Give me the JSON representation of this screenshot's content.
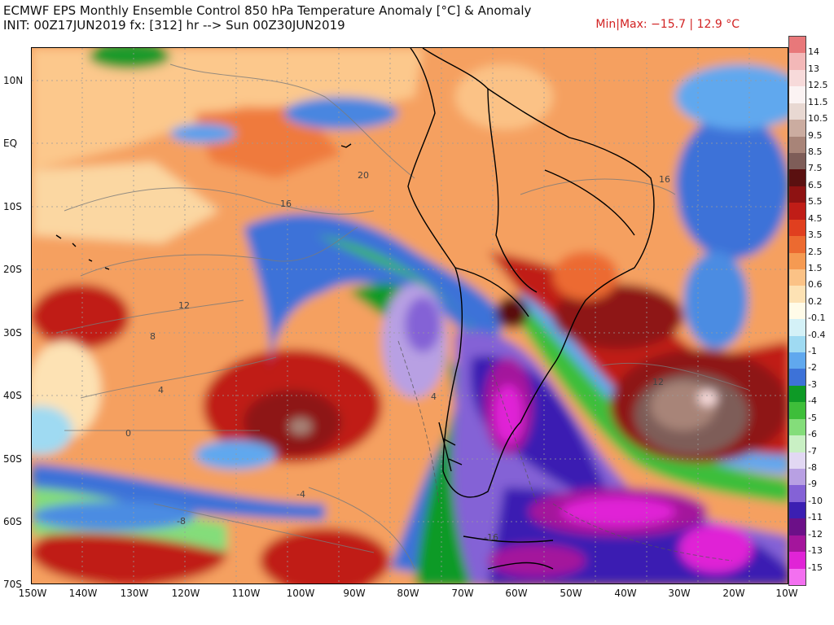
{
  "header": {
    "title": "ECMWF EPS Monthly Ensemble Control 850 hPa Temperature Anomaly [°C] & Anomaly",
    "init_line": "INIT: 00Z17JUN2019 fx: [312] hr --> Sun 00Z30JUN2019",
    "minmax": "Min|Max: −15.7 | 12.9 °C"
  },
  "axes": {
    "lat_labels": [
      "10N",
      "EQ",
      "10S",
      "20S",
      "30S",
      "40S",
      "50S",
      "60S",
      "70S"
    ],
    "lon_labels": [
      "150W",
      "140W",
      "130W",
      "120W",
      "110W",
      "100W",
      "90W",
      "80W",
      "70W",
      "60W",
      "50W",
      "40W",
      "30W",
      "20W",
      "10W"
    ]
  },
  "contour_labels": [
    "20",
    "16",
    "12",
    "8",
    "4",
    "0",
    "-4",
    "-8",
    "-16",
    "16",
    "12",
    "4"
  ],
  "colorbar": {
    "labels": [
      "14",
      "13",
      "12.5",
      "11.5",
      "10.5",
      "9.5",
      "8.5",
      "7.5",
      "6.5",
      "5.5",
      "4.5",
      "3.5",
      "2.5",
      "1.5",
      "0.6",
      "0.2",
      "-0.1",
      "-0.4",
      "-1",
      "-2",
      "-3",
      "-4",
      "-5",
      "-6",
      "-7",
      "-8",
      "-9",
      "-10",
      "-11",
      "-12",
      "-13",
      "-15"
    ],
    "colors": [
      "#e8787a",
      "#f3b8b8",
      "#f7dada",
      "#fbf3f3",
      "#e8d8d2",
      "#cbaca0",
      "#a88478",
      "#7e5d58",
      "#5a1010",
      "#8e1212",
      "#c01d17",
      "#e03f1f",
      "#ec6a30",
      "#f59a52",
      "#fbc286",
      "#fde2b4",
      "#fffbe8",
      "#d4f1f7",
      "#9fdaf2",
      "#60a8ee",
      "#3d72d8",
      "#0e9a26",
      "#3ebe3a",
      "#84dd7a",
      "#c9f0c4",
      "#e2d8f3",
      "#b8a0e3",
      "#8462d6",
      "#3b1fb2",
      "#6c1088",
      "#a4159c",
      "#e024d6",
      "#f370f0"
    ]
  }
}
